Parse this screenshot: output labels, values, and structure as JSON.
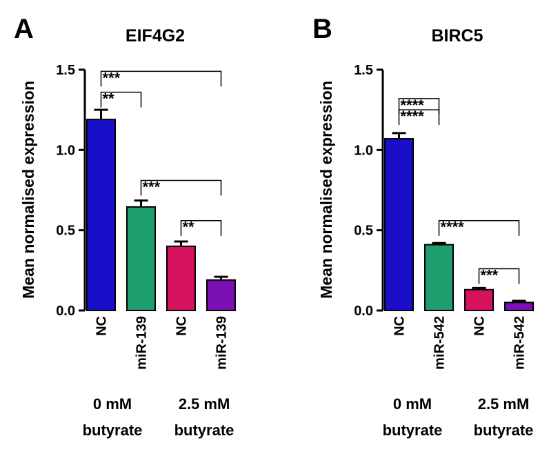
{
  "chart_data": [
    {
      "panel": "A",
      "type": "bar",
      "title": "EIF4G2",
      "ylabel": "Mean normalised expression",
      "xlabel": "",
      "ylim": [
        0,
        1.5
      ],
      "yticks": [
        0.0,
        0.5,
        1.0,
        1.5
      ],
      "ytick_labels": [
        "0.0",
        "0.5",
        "1.0",
        "1.5"
      ],
      "categories": [
        "NC",
        "miR-139",
        "NC",
        "miR-139"
      ],
      "values": [
        1.19,
        0.645,
        0.4,
        0.19
      ],
      "errors": [
        0.06,
        0.04,
        0.03,
        0.02
      ],
      "colors": [
        "#1a0fc8",
        "#1e9e6c",
        "#d4125e",
        "#7a10b4"
      ],
      "groups": [
        {
          "line1": "0 mM",
          "line2": "butyrate",
          "categories": [
            0,
            1
          ]
        },
        {
          "line1": "2.5 mM",
          "line2": "butyrate",
          "categories": [
            2,
            3
          ]
        }
      ],
      "significance": [
        {
          "from": 0,
          "to": 3,
          "label": "***",
          "y": 1.49
        },
        {
          "from": 0,
          "to": 1,
          "label": "**",
          "y": 1.36
        },
        {
          "from": 1,
          "to": 3,
          "label": "***",
          "y": 0.81
        },
        {
          "from": 2,
          "to": 3,
          "label": "**",
          "y": 0.56
        }
      ]
    },
    {
      "panel": "B",
      "type": "bar",
      "title": "BIRC5",
      "ylabel": "Mean normalised expression",
      "xlabel": "",
      "ylim": [
        0,
        1.5
      ],
      "yticks": [
        0.0,
        0.5,
        1.0,
        1.5
      ],
      "ytick_labels": [
        "0.0",
        "0.5",
        "1.0",
        "1.5"
      ],
      "categories": [
        "NC",
        "miR-542",
        "NC",
        "miR-542"
      ],
      "values": [
        1.07,
        0.41,
        0.13,
        0.05
      ],
      "errors": [
        0.035,
        0.01,
        0.01,
        0.01
      ],
      "colors": [
        "#1a0fc8",
        "#1e9e6c",
        "#d4125e",
        "#7a10b4"
      ],
      "groups": [
        {
          "line1": "0 mM",
          "line2": "butyrate",
          "categories": [
            0,
            1
          ]
        },
        {
          "line1": "2.5 mM",
          "line2": "butyrate",
          "categories": [
            2,
            3
          ]
        }
      ],
      "significance": [
        {
          "from": 0,
          "to": 1,
          "label": "****",
          "y": 1.32
        },
        {
          "from": 0,
          "to": 1,
          "label": "****",
          "y": 1.25
        },
        {
          "from": 1,
          "to": 3,
          "label": "****",
          "y": 0.56
        },
        {
          "from": 2,
          "to": 3,
          "label": "***",
          "y": 0.26
        }
      ]
    }
  ]
}
